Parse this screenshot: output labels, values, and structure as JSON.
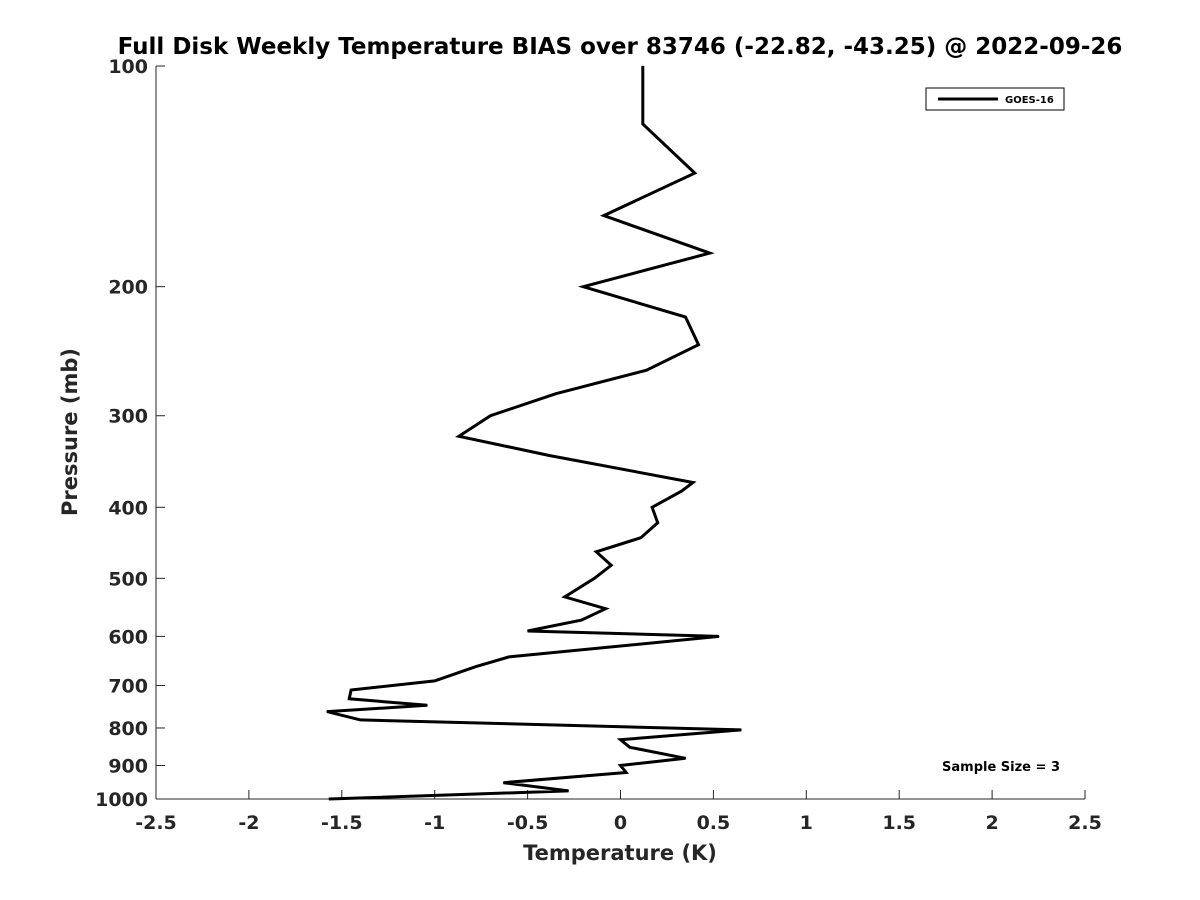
{
  "chart_data": {
    "type": "line",
    "title": "Full Disk Weekly Temperature BIAS over 83746 (-22.82, -43.25) @ 2022-09-26",
    "xlabel": "Temperature (K)",
    "ylabel": "Pressure (mb)",
    "xlim": [
      -2.5,
      2.5
    ],
    "ylim": [
      100,
      1000
    ],
    "y_scale": "log",
    "y_reversed": true,
    "grid": false,
    "legend_position": "top-right",
    "x_ticks": [
      "-2.5",
      "-2",
      "-1.5",
      "-1",
      "-0.5",
      "0",
      "0.5",
      "1",
      "1.5",
      "2",
      "2.5"
    ],
    "y_ticks": [
      "100",
      "200",
      "300",
      "400",
      "500",
      "600",
      "700",
      "800",
      "900",
      "1000"
    ],
    "annotation": "Sample Size = 3",
    "series": [
      {
        "name": "GOES-16",
        "color": "#000000",
        "points": [
          {
            "p": 100,
            "t": 0.12
          },
          {
            "p": 120,
            "t": 0.12
          },
          {
            "p": 140,
            "t": 0.4
          },
          {
            "p": 160,
            "t": -0.09
          },
          {
            "p": 180,
            "t": 0.48
          },
          {
            "p": 200,
            "t": -0.2
          },
          {
            "p": 220,
            "t": 0.35
          },
          {
            "p": 240,
            "t": 0.42
          },
          {
            "p": 260,
            "t": 0.14
          },
          {
            "p": 280,
            "t": -0.35
          },
          {
            "p": 300,
            "t": -0.7
          },
          {
            "p": 320,
            "t": -0.87
          },
          {
            "p": 340,
            "t": -0.38
          },
          {
            "p": 370,
            "t": 0.39
          },
          {
            "p": 380,
            "t": 0.33
          },
          {
            "p": 400,
            "t": 0.17
          },
          {
            "p": 420,
            "t": 0.2
          },
          {
            "p": 440,
            "t": 0.11
          },
          {
            "p": 460,
            "t": -0.13
          },
          {
            "p": 480,
            "t": -0.05
          },
          {
            "p": 500,
            "t": -0.14
          },
          {
            "p": 530,
            "t": -0.3
          },
          {
            "p": 550,
            "t": -0.08
          },
          {
            "p": 570,
            "t": -0.21
          },
          {
            "p": 590,
            "t": -0.5
          },
          {
            "p": 600,
            "t": 0.53
          },
          {
            "p": 640,
            "t": -0.6
          },
          {
            "p": 660,
            "t": -0.78
          },
          {
            "p": 690,
            "t": -1.0
          },
          {
            "p": 710,
            "t": -1.45
          },
          {
            "p": 730,
            "t": -1.46
          },
          {
            "p": 745,
            "t": -1.04
          },
          {
            "p": 760,
            "t": -1.58
          },
          {
            "p": 780,
            "t": -1.4
          },
          {
            "p": 805,
            "t": 0.65
          },
          {
            "p": 830,
            "t": 0.0
          },
          {
            "p": 850,
            "t": 0.05
          },
          {
            "p": 880,
            "t": 0.35
          },
          {
            "p": 900,
            "t": 0.0
          },
          {
            "p": 920,
            "t": 0.03
          },
          {
            "p": 950,
            "t": -0.63
          },
          {
            "p": 975,
            "t": -0.28
          },
          {
            "p": 1000,
            "t": -1.57
          }
        ]
      }
    ]
  }
}
